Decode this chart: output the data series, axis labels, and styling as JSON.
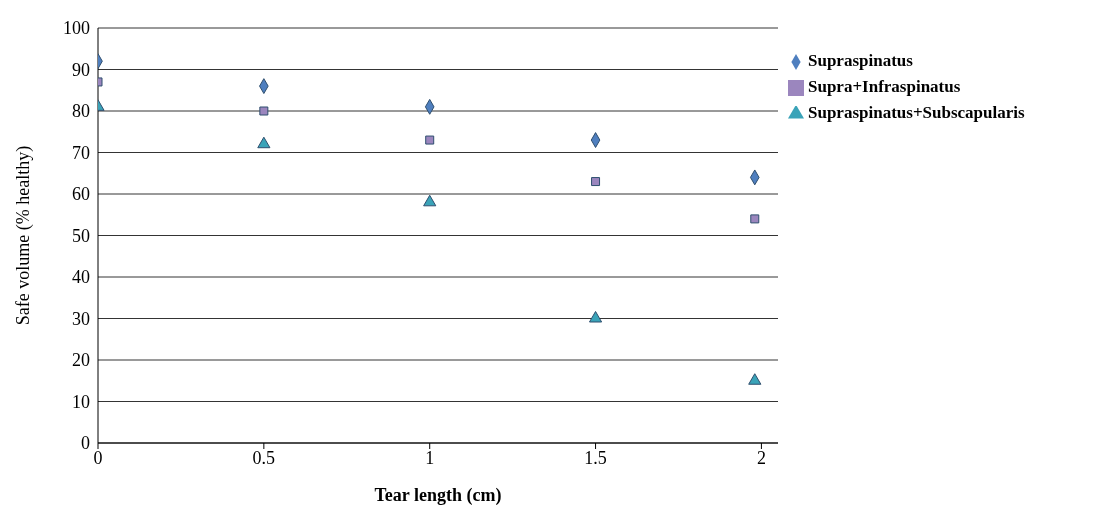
{
  "chart_data": {
    "type": "scatter",
    "xlabel": "Tear length (cm)",
    "ylabel": "Safe volume (% healthy)",
    "xlim": [
      0,
      2.05
    ],
    "xticks": [
      0,
      0.5,
      1,
      1.5,
      2
    ],
    "ylim": [
      0,
      100
    ],
    "yticks": [
      0,
      10,
      20,
      30,
      40,
      50,
      60,
      70,
      80,
      90,
      100
    ],
    "grid": "y",
    "legend": "top right",
    "series": [
      {
        "name": "Supraspinatus",
        "color": "#4f7fbf",
        "marker": "diamond",
        "x": [
          0,
          0.5,
          1,
          1.5,
          1.98
        ],
        "values": [
          92,
          86,
          81,
          73,
          64
        ]
      },
      {
        "name": "Supra+Infraspinatus",
        "color": "#9b86be",
        "marker": "square",
        "x": [
          0,
          0.5,
          1,
          1.5,
          1.98
        ],
        "values": [
          87,
          80,
          73,
          63,
          54
        ]
      },
      {
        "name": "Supraspinatus+Subscapularis",
        "color": "#3aa3b8",
        "marker": "triangle",
        "x": [
          0,
          0.5,
          1,
          1.5,
          1.98
        ],
        "values": [
          81,
          72,
          58,
          30,
          15
        ]
      }
    ]
  }
}
